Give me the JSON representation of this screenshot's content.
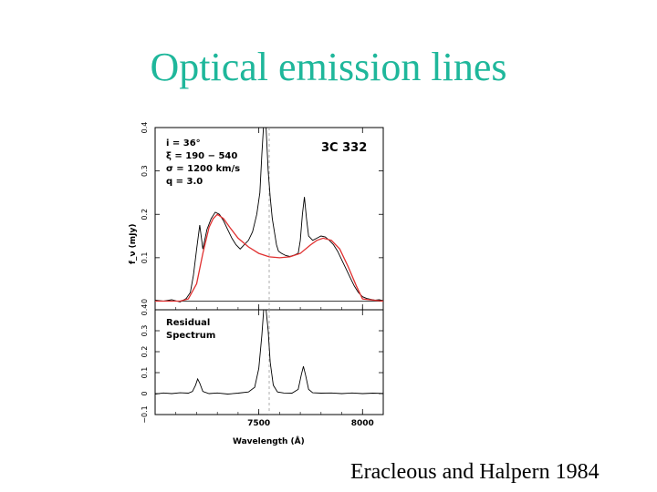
{
  "slide": {
    "title": "Optical emission lines",
    "citation": "Eracleous and Halpern 1984"
  },
  "colors": {
    "title": "#1fb79b",
    "model": "#e03030",
    "data": "#000000"
  },
  "chart_data": [
    {
      "type": "line",
      "panel": "top",
      "object": "3C 332",
      "params": [
        "i  =  36°",
        "ξ  =  190  −  540",
        "σ  =  1200 km/s",
        "q  =  3.0"
      ],
      "xlabel": "Wavelength (Å)",
      "ylabel": "f_ν (mJy)",
      "xlim": [
        7000,
        8100
      ],
      "ylim": [
        -0.02,
        0.4
      ],
      "yticks": [
        "0",
        "0.1",
        "0.2",
        "0.3",
        "0.4"
      ],
      "xticks": [
        "7500",
        "8000"
      ],
      "reference_line_x": 7550,
      "series": [
        {
          "kind": "observed",
          "x": [
            7000,
            7040,
            7080,
            7120,
            7150,
            7170,
            7185,
            7200,
            7215,
            7230,
            7250,
            7270,
            7290,
            7310,
            7330,
            7350,
            7370,
            7390,
            7410,
            7430,
            7450,
            7470,
            7490,
            7505,
            7515,
            7525,
            7535,
            7545,
            7555,
            7565,
            7575,
            7585,
            7595,
            7610,
            7630,
            7650,
            7670,
            7690,
            7700,
            7710,
            7720,
            7730,
            7740,
            7760,
            7780,
            7800,
            7820,
            7840,
            7860,
            7880,
            7900,
            7920,
            7940,
            7960,
            7980,
            8000,
            8020,
            8040,
            8060,
            8080,
            8100
          ],
          "y": [
            0.002,
            0.0,
            0.003,
            -0.002,
            0.006,
            0.02,
            0.06,
            0.12,
            0.175,
            0.12,
            0.165,
            0.19,
            0.205,
            0.2,
            0.185,
            0.165,
            0.145,
            0.13,
            0.12,
            0.13,
            0.14,
            0.16,
            0.2,
            0.25,
            0.34,
            0.42,
            0.4,
            0.3,
            0.24,
            0.19,
            0.16,
            0.13,
            0.115,
            0.11,
            0.105,
            0.103,
            0.106,
            0.11,
            0.14,
            0.2,
            0.24,
            0.19,
            0.15,
            0.14,
            0.145,
            0.15,
            0.148,
            0.14,
            0.13,
            0.115,
            0.095,
            0.075,
            0.055,
            0.035,
            0.02,
            0.01,
            0.006,
            0.004,
            0.002,
            0.003,
            0.001
          ]
        },
        {
          "kind": "model",
          "x": [
            7000,
            7120,
            7160,
            7200,
            7230,
            7260,
            7280,
            7300,
            7330,
            7360,
            7400,
            7450,
            7500,
            7550,
            7600,
            7650,
            7700,
            7750,
            7780,
            7810,
            7850,
            7890,
            7930,
            7970,
            8000,
            8100
          ],
          "y": [
            0.0,
            0.0,
            0.005,
            0.04,
            0.11,
            0.17,
            0.19,
            0.2,
            0.19,
            0.17,
            0.145,
            0.125,
            0.11,
            0.102,
            0.1,
            0.102,
            0.11,
            0.13,
            0.14,
            0.145,
            0.14,
            0.12,
            0.08,
            0.035,
            0.005,
            0.0
          ]
        }
      ]
    },
    {
      "type": "line",
      "panel": "bottom",
      "label_line1": "Residual",
      "label_line2": "Spectrum",
      "xlabel": "Wavelength (Å)",
      "xlim": [
        7000,
        8100
      ],
      "ylim": [
        -0.1,
        0.4
      ],
      "yticks": [
        "−0.1",
        "0",
        "0.1",
        "0.2",
        "0.3",
        "0.4"
      ],
      "xticks": [
        "7500",
        "8000"
      ],
      "reference_line_x": 7550,
      "series": [
        {
          "kind": "residual",
          "x": [
            7000,
            7040,
            7080,
            7120,
            7160,
            7180,
            7195,
            7205,
            7215,
            7230,
            7260,
            7300,
            7350,
            7400,
            7450,
            7480,
            7500,
            7515,
            7525,
            7535,
            7545,
            7555,
            7570,
            7590,
            7620,
            7660,
            7690,
            7705,
            7715,
            7725,
            7740,
            7760,
            7800,
            7850,
            7900,
            7950,
            8000,
            8050,
            8100
          ],
          "y": [
            -0.002,
            0.003,
            0.0,
            0.004,
            0.002,
            0.01,
            0.04,
            0.07,
            0.05,
            0.01,
            0.0,
            0.003,
            -0.002,
            0.002,
            0.008,
            0.03,
            0.12,
            0.28,
            0.42,
            0.4,
            0.3,
            0.15,
            0.04,
            0.008,
            0.003,
            0.002,
            0.02,
            0.09,
            0.13,
            0.09,
            0.02,
            0.004,
            0.002,
            0.003,
            0.0,
            0.003,
            0.0,
            0.002,
            0.001
          ]
        }
      ]
    }
  ]
}
